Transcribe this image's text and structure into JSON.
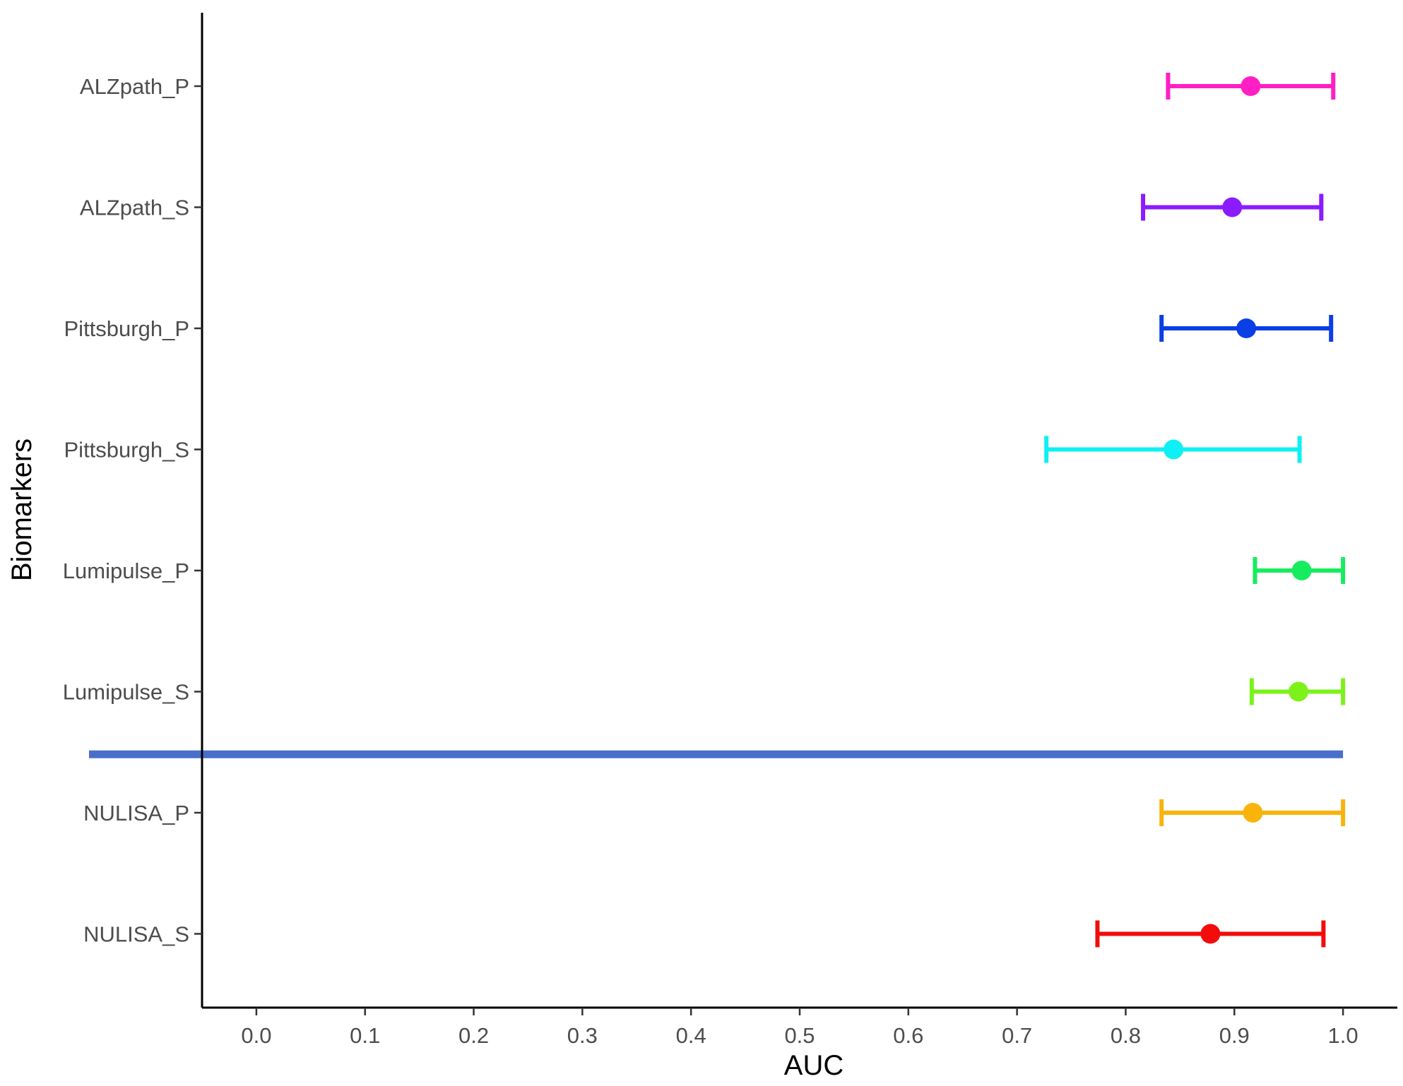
{
  "chart_data": {
    "type": "forest",
    "xlabel": "AUC",
    "ylabel": "Biomarkers",
    "xlim": [
      -0.05,
      1.05
    ],
    "x_ticks": [
      "0.0",
      "0.1",
      "0.2",
      "0.3",
      "0.4",
      "0.5",
      "0.6",
      "0.7",
      "0.8",
      "0.9",
      "1.0"
    ],
    "categories": [
      "ALZpath_P",
      "ALZpath_S",
      "Pittsburgh_P",
      "Pittsburgh_S",
      "Lumipulse_P",
      "Lumipulse_S",
      "NULISA_P",
      "NULISA_S"
    ],
    "points": [
      {
        "label": "ALZpath_P",
        "auc": 0.915,
        "lower": 0.839,
        "upper": 0.991,
        "color": "#ff1fc4"
      },
      {
        "label": "ALZpath_S",
        "auc": 0.898,
        "lower": 0.816,
        "upper": 0.98,
        "color": "#8a1cff"
      },
      {
        "label": "Pittsburgh_P",
        "auc": 0.911,
        "lower": 0.833,
        "upper": 0.989,
        "color": "#0a3fe6"
      },
      {
        "label": "Pittsburgh_S",
        "auc": 0.844,
        "lower": 0.727,
        "upper": 0.96,
        "color": "#0ef0f4"
      },
      {
        "label": "Lumipulse_P",
        "auc": 0.962,
        "lower": 0.919,
        "upper": 1.0,
        "color": "#17ec5e"
      },
      {
        "label": "Lumipulse_S",
        "auc": 0.959,
        "lower": 0.916,
        "upper": 1.0,
        "color": "#7cf21a"
      },
      {
        "label": "NULISA_P",
        "auc": 0.917,
        "lower": 0.833,
        "upper": 1.0,
        "color": "#f8b40c"
      },
      {
        "label": "NULISA_S",
        "auc": 0.878,
        "lower": 0.774,
        "upper": 0.982,
        "color": "#f20d0d"
      }
    ],
    "separator": {
      "after": "Lumipulse_S",
      "color": "#4a6ecb",
      "x_end": 1.0
    },
    "grid": false,
    "legend": "none"
  }
}
